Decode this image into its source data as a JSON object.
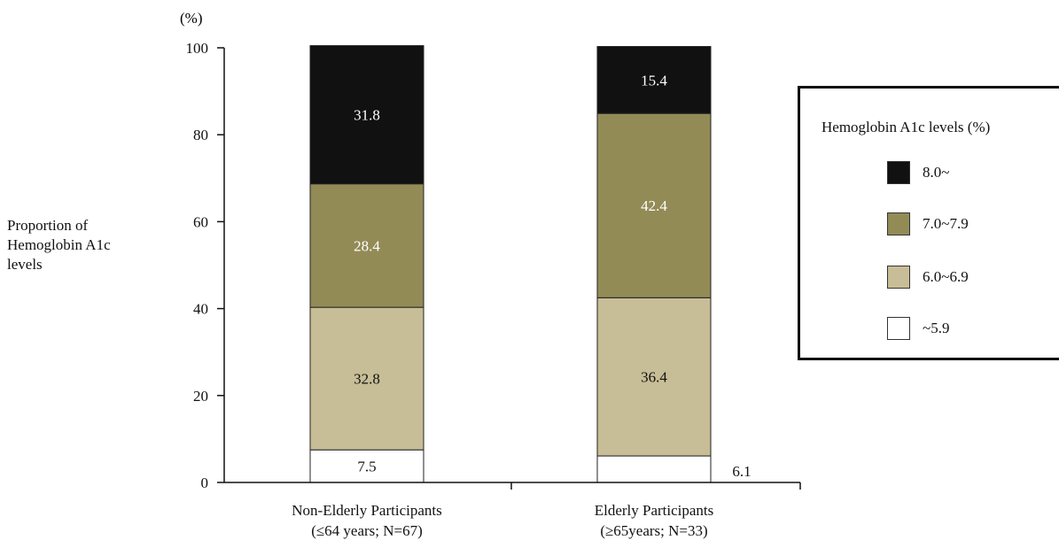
{
  "chart_data": {
    "type": "bar",
    "stacked": true,
    "unit_label": "(%)",
    "ylabel": "Proportion  of\nHemoglobin A1c\nlevels",
    "ylim": [
      0,
      100
    ],
    "yticks": [
      0,
      20,
      40,
      60,
      80,
      100
    ],
    "categories": [
      {
        "line1": "Non-Elderly Participants",
        "line2": "(≤64 years; N=67)"
      },
      {
        "line1": "Elderly Participants",
        "line2": "(≥65years; N=33)"
      }
    ],
    "series": [
      {
        "name": "~5.9",
        "color": "#ffffff",
        "label_color": "#111111",
        "values": [
          7.5,
          6.1
        ]
      },
      {
        "name": "6.0~6.9",
        "color": "#c7bd96",
        "label_color": "#111111",
        "values": [
          32.8,
          36.4
        ]
      },
      {
        "name": "7.0~7.9",
        "color": "#938b56",
        "label_color": "#ffffff",
        "values": [
          28.4,
          42.4
        ]
      },
      {
        "name": "8.0~",
        "color": "#111111",
        "label_color": "#ffffff",
        "values": [
          31.8,
          15.4
        ]
      }
    ],
    "legend": {
      "title": "Hemoglobin A1c levels (%)",
      "placement": "right",
      "order": [
        3,
        2,
        1,
        0
      ]
    },
    "grid": false
  }
}
